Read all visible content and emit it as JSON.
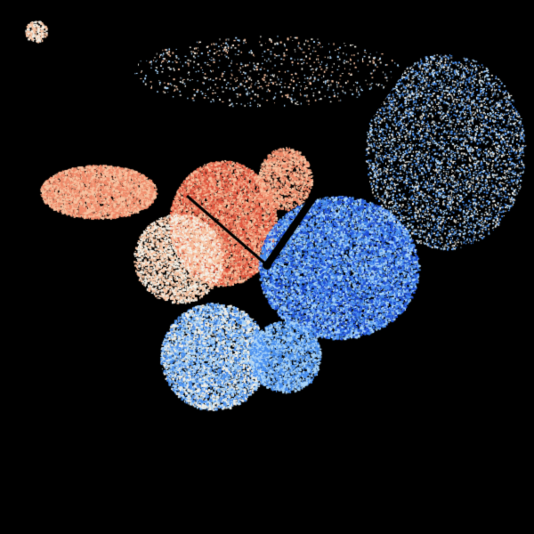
{
  "image": {
    "kind": "radar-velocity-field",
    "background_color": "#000000",
    "colors": {
      "inbound_dark": "#1f4fd8",
      "inbound_mid": "#4a90f0",
      "inbound_light": "#a8d4fa",
      "near_zero": "#f4f0e6",
      "outbound_light": "#f8c2a0",
      "outbound_mid": "#f08a6a",
      "outbound_dark": "#e0553f",
      "radar_site": "#000000"
    }
  }
}
